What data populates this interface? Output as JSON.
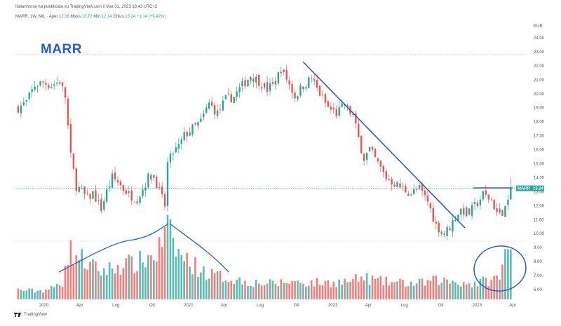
{
  "header": {
    "published_by": "italianhorse ha pubblicato su TradingView.com il Mar 31, 2023 18:43 UTC+2"
  },
  "legend": {
    "symbol_info": "MARR, 1W, MIL",
    "open_label": "Aper.",
    "open_value": "12.36",
    "high_label": "Mass.",
    "high_value": "13.72",
    "low_label": "Min.",
    "low_value": "12.14",
    "close_label": "Chius.",
    "close_value": "13.24",
    "change": "+1.14 (+9.42%)"
  },
  "watermark": "MARR",
  "footer": {
    "brand": "TradingView"
  },
  "colors": {
    "up": "#26a69a",
    "down": "#ef5350",
    "annotation": "#2a5bd7",
    "price_tag": "#26a69a",
    "dotted_line": "#a8abb3"
  },
  "chart_data": {
    "type": "candlestick",
    "currency": "EUR",
    "last_price_tag": {
      "symbol": "MARR",
      "value": "13.24"
    },
    "y_ticks": [
      "24.00",
      "23.00",
      "22.00",
      "21.00",
      "20.00",
      "19.00",
      "18.00",
      "17.00",
      "16.00",
      "15.00",
      "14.00",
      "13.00",
      "12.00",
      "11.00",
      "10.00",
      "9.00",
      "8.00",
      "7.00",
      "6.00"
    ],
    "x_ticks": [
      "2020",
      "Apr",
      "Lug",
      "Ott",
      "2021",
      "Apr",
      "Lug",
      "Ott",
      "2022",
      "Apr",
      "Lug",
      "Ott",
      "2023",
      "Apr"
    ],
    "ylim": [
      5.3,
      24.6
    ],
    "price_high_reference": 22.8,
    "price_path": [
      [
        "2019-10-28",
        19.0
      ],
      [
        "2019-11-18",
        19.4
      ],
      [
        "2019-12-09",
        20.6
      ],
      [
        "2019-12-30",
        20.8
      ],
      [
        "2020-01-20",
        20.6
      ],
      [
        "2020-02-10",
        20.9
      ],
      [
        "2020-02-24",
        19.8
      ],
      [
        "2020-03-09",
        15.5
      ],
      [
        "2020-03-23",
        13.4
      ],
      [
        "2020-04-06",
        13.0
      ],
      [
        "2020-04-20",
        12.5
      ],
      [
        "2020-05-04",
        12.9
      ],
      [
        "2020-05-25",
        11.8
      ],
      [
        "2020-06-08",
        13.0
      ],
      [
        "2020-06-22",
        14.0
      ],
      [
        "2020-07-06",
        13.7
      ],
      [
        "2020-07-20",
        13.2
      ],
      [
        "2020-08-03",
        12.8
      ],
      [
        "2020-08-24",
        12.5
      ],
      [
        "2020-09-07",
        13.2
      ],
      [
        "2020-09-21",
        14.0
      ],
      [
        "2020-10-05",
        14.2
      ],
      [
        "2020-10-19",
        13.0
      ],
      [
        "2020-11-02",
        12.0
      ],
      [
        "2020-11-09",
        15.0
      ],
      [
        "2020-11-23",
        15.8
      ],
      [
        "2020-12-07",
        16.2
      ],
      [
        "2020-12-21",
        17.0
      ],
      [
        "2021-01-11",
        17.5
      ],
      [
        "2021-02-01",
        18.0
      ],
      [
        "2021-02-22",
        19.3
      ],
      [
        "2021-03-15",
        18.6
      ],
      [
        "2021-04-05",
        19.6
      ],
      [
        "2021-04-26",
        19.8
      ],
      [
        "2021-05-17",
        20.6
      ],
      [
        "2021-06-07",
        21.3
      ],
      [
        "2021-06-28",
        20.9
      ],
      [
        "2021-07-19",
        20.3
      ],
      [
        "2021-08-09",
        20.9
      ],
      [
        "2021-08-23",
        21.8
      ],
      [
        "2021-09-06",
        21.1
      ],
      [
        "2021-09-27",
        19.8
      ],
      [
        "2021-10-18",
        20.6
      ],
      [
        "2021-11-08",
        21.1
      ],
      [
        "2021-11-29",
        20.0
      ],
      [
        "2021-12-20",
        19.0
      ],
      [
        "2022-01-10",
        18.6
      ],
      [
        "2022-01-31",
        19.2
      ],
      [
        "2022-02-21",
        18.4
      ],
      [
        "2022-03-07",
        16.8
      ],
      [
        "2022-03-21",
        15.4
      ],
      [
        "2022-04-04",
        16.0
      ],
      [
        "2022-04-25",
        15.0
      ],
      [
        "2022-05-16",
        14.0
      ],
      [
        "2022-06-06",
        13.6
      ],
      [
        "2022-06-27",
        13.2
      ],
      [
        "2022-07-18",
        12.9
      ],
      [
        "2022-08-08",
        13.2
      ],
      [
        "2022-08-29",
        12.3
      ],
      [
        "2022-09-19",
        10.6
      ],
      [
        "2022-10-10",
        10.0
      ],
      [
        "2022-10-24",
        10.5
      ],
      [
        "2022-11-07",
        11.2
      ],
      [
        "2022-11-21",
        11.7
      ],
      [
        "2022-12-12",
        11.5
      ],
      [
        "2023-01-02",
        12.2
      ],
      [
        "2023-01-16",
        12.8
      ],
      [
        "2023-02-06",
        12.4
      ],
      [
        "2023-02-20",
        11.5
      ],
      [
        "2023-03-06",
        11.6
      ],
      [
        "2023-03-20",
        12.1
      ],
      [
        "2023-03-27",
        13.24
      ]
    ],
    "volume_path": [
      [
        "2019-10-28",
        0.8
      ],
      [
        "2019-12-16",
        0.7
      ],
      [
        "2020-01-20",
        0.9
      ],
      [
        "2020-02-17",
        1.4
      ],
      [
        "2020-02-24",
        3.4
      ],
      [
        "2020-03-09",
        4.0
      ],
      [
        "2020-03-30",
        3.6
      ],
      [
        "2020-04-27",
        2.8
      ],
      [
        "2020-05-25",
        2.4
      ],
      [
        "2020-06-22",
        2.6
      ],
      [
        "2020-07-20",
        3.0
      ],
      [
        "2020-08-17",
        2.9
      ],
      [
        "2020-09-14",
        3.4
      ],
      [
        "2020-10-12",
        3.8
      ],
      [
        "2020-11-09",
        5.9
      ],
      [
        "2020-11-23",
        4.6
      ],
      [
        "2020-12-14",
        3.6
      ],
      [
        "2021-01-18",
        2.8
      ],
      [
        "2021-02-22",
        2.1
      ],
      [
        "2021-03-29",
        1.9
      ],
      [
        "2021-05-10",
        1.6
      ],
      [
        "2021-06-21",
        1.4
      ],
      [
        "2021-08-02",
        1.3
      ],
      [
        "2021-09-13",
        1.5
      ],
      [
        "2021-11-01",
        1.4
      ],
      [
        "2021-12-20",
        1.4
      ],
      [
        "2022-02-07",
        1.5
      ],
      [
        "2022-03-21",
        1.8
      ],
      [
        "2022-05-02",
        1.5
      ],
      [
        "2022-06-13",
        1.4
      ],
      [
        "2022-08-01",
        1.3
      ],
      [
        "2022-09-19",
        1.6
      ],
      [
        "2022-11-07",
        1.5
      ],
      [
        "2022-12-19",
        1.3
      ],
      [
        "2023-01-30",
        1.6
      ],
      [
        "2023-02-27",
        1.8
      ],
      [
        "2023-03-13",
        3.8
      ],
      [
        "2023-03-20",
        3.7
      ],
      [
        "2023-03-27",
        4.6
      ]
    ],
    "volume_ylim": [
      0,
      6.2
    ]
  }
}
